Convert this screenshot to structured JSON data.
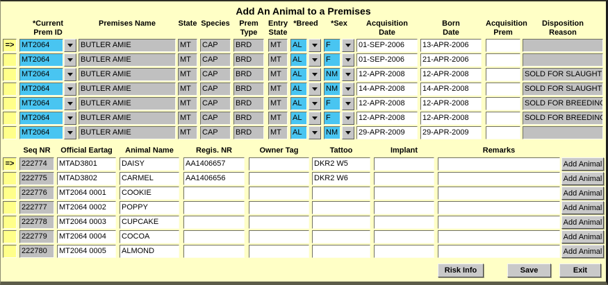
{
  "window": {
    "title": "Add An Animal to a Premises"
  },
  "colors": {
    "canvas": "#ffffc6",
    "field_gray": "#c0c0c0",
    "field_cyan": "#49c5f1",
    "field_white": "#ffffff",
    "selector_yellow": "#ffff8a",
    "button_face": "#c9c9c9"
  },
  "top_grid": {
    "columns": [
      {
        "line1": "*Current",
        "line2": "Prem ID"
      },
      {
        "line1": "",
        "line2": "Premises Name"
      },
      {
        "line1": "",
        "line2": "State"
      },
      {
        "line1": "",
        "line2": "Species"
      },
      {
        "line1": "Prem",
        "line2": "Type"
      },
      {
        "line1": "Entry",
        "line2": "State"
      },
      {
        "line1": "",
        "line2": "*Breed"
      },
      {
        "line1": "",
        "line2": "*Sex"
      },
      {
        "line1": "Acquisition",
        "line2": "Date"
      },
      {
        "line1": "Born",
        "line2": "Date"
      },
      {
        "line1": "Acquisition",
        "line2": "Prem"
      },
      {
        "line1": "Disposition",
        "line2": "Reason"
      }
    ],
    "rows": [
      {
        "selector": "=>",
        "prem_id": "MT2064",
        "premises_name": "BUTLER AMIE",
        "state": "MT",
        "species": "CAP",
        "prem_type": "BRD",
        "entry_state": "MT",
        "breed": "AL",
        "sex": "F",
        "acquisition_date": "01-SEP-2006",
        "born_date": "13-APR-2006",
        "acquisition_prem": "",
        "disposition_reason": ""
      },
      {
        "selector": "",
        "prem_id": "MT2064",
        "premises_name": "BUTLER AMIE",
        "state": "MT",
        "species": "CAP",
        "prem_type": "BRD",
        "entry_state": "MT",
        "breed": "AL",
        "sex": "F",
        "acquisition_date": "01-SEP-2006",
        "born_date": "21-APR-2006",
        "acquisition_prem": "",
        "disposition_reason": ""
      },
      {
        "selector": "",
        "prem_id": "MT2064",
        "premises_name": "BUTLER AMIE",
        "state": "MT",
        "species": "CAP",
        "prem_type": "BRD",
        "entry_state": "MT",
        "breed": "AL",
        "sex": "NM",
        "acquisition_date": "12-APR-2008",
        "born_date": "12-APR-2008",
        "acquisition_prem": "",
        "disposition_reason": "SOLD FOR SLAUGHTER"
      },
      {
        "selector": "",
        "prem_id": "MT2064",
        "premises_name": "BUTLER AMIE",
        "state": "MT",
        "species": "CAP",
        "prem_type": "BRD",
        "entry_state": "MT",
        "breed": "AL",
        "sex": "NM",
        "acquisition_date": "14-APR-2008",
        "born_date": "14-APR-2008",
        "acquisition_prem": "",
        "disposition_reason": "SOLD FOR SLAUGHTER"
      },
      {
        "selector": "",
        "prem_id": "MT2064",
        "premises_name": "BUTLER AMIE",
        "state": "MT",
        "species": "CAP",
        "prem_type": "BRD",
        "entry_state": "MT",
        "breed": "AL",
        "sex": "F",
        "acquisition_date": "12-APR-2008",
        "born_date": "12-APR-2008",
        "acquisition_prem": "",
        "disposition_reason": "SOLD FOR BREEDING"
      },
      {
        "selector": "",
        "prem_id": "MT2064",
        "premises_name": "BUTLER AMIE",
        "state": "MT",
        "species": "CAP",
        "prem_type": "BRD",
        "entry_state": "MT",
        "breed": "AL",
        "sex": "F",
        "acquisition_date": "12-APR-2008",
        "born_date": "12-APR-2008",
        "acquisition_prem": "",
        "disposition_reason": "SOLD FOR BREEDING"
      },
      {
        "selector": "",
        "prem_id": "MT2064",
        "premises_name": "BUTLER AMIE",
        "state": "MT",
        "species": "CAP",
        "prem_type": "BRD",
        "entry_state": "MT",
        "breed": "AL",
        "sex": "NM",
        "acquisition_date": "29-APR-2009",
        "born_date": "29-APR-2009",
        "acquisition_prem": "",
        "disposition_reason": ""
      }
    ]
  },
  "bottom_grid": {
    "headers": [
      "Seq NR",
      "Official Eartag",
      "Animal Name",
      "Regis. NR",
      "Owner Tag",
      "Tattoo",
      "Implant",
      "Remarks"
    ],
    "add_animal_label": "Add Animal",
    "rows": [
      {
        "selector": "=>",
        "seq_nr": "222774",
        "official_eartag": "MTAD3801",
        "animal_name": "DAISY",
        "regis_nr": "AA1406657",
        "owner_tag": "",
        "tattoo": "DKR2 W5",
        "implant": "",
        "remarks": ""
      },
      {
        "selector": "",
        "seq_nr": "222775",
        "official_eartag": "MTAD3802",
        "animal_name": "CARMEL",
        "regis_nr": "AA1406656",
        "owner_tag": "",
        "tattoo": "DKR2 W6",
        "implant": "",
        "remarks": ""
      },
      {
        "selector": "",
        "seq_nr": "222776",
        "official_eartag": "MT2064 0001",
        "animal_name": "COOKIE",
        "regis_nr": "",
        "owner_tag": "",
        "tattoo": "",
        "implant": "",
        "remarks": ""
      },
      {
        "selector": "",
        "seq_nr": "222777",
        "official_eartag": "MT2064 0002",
        "animal_name": "POPPY",
        "regis_nr": "",
        "owner_tag": "",
        "tattoo": "",
        "implant": "",
        "remarks": ""
      },
      {
        "selector": "",
        "seq_nr": "222778",
        "official_eartag": "MT2064 0003",
        "animal_name": "CUPCAKE",
        "regis_nr": "",
        "owner_tag": "",
        "tattoo": "",
        "implant": "",
        "remarks": ""
      },
      {
        "selector": "",
        "seq_nr": "222779",
        "official_eartag": "MT2064 0004",
        "animal_name": "COCOA",
        "regis_nr": "",
        "owner_tag": "",
        "tattoo": "",
        "implant": "",
        "remarks": ""
      },
      {
        "selector": "",
        "seq_nr": "222780",
        "official_eartag": "MT2064 0005",
        "animal_name": "ALMOND",
        "regis_nr": "",
        "owner_tag": "",
        "tattoo": "",
        "implant": "",
        "remarks": ""
      }
    ]
  },
  "footer": {
    "risk_info": "Risk Info",
    "save": "Save",
    "exit": "Exit"
  }
}
